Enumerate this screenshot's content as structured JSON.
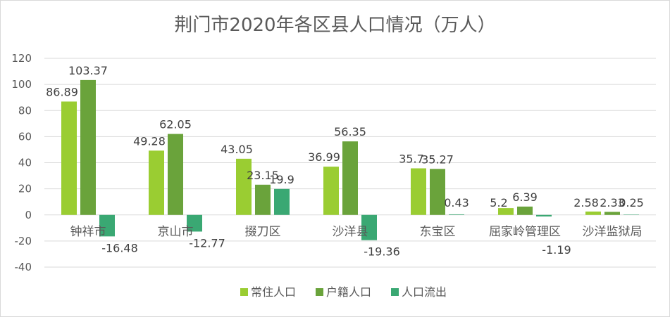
{
  "chart_data": {
    "type": "bar",
    "title": "荆门市2020年各区县人口情况（万人）",
    "categories": [
      "钟祥市",
      "京山市",
      "掇刀区",
      "沙洋县",
      "东宝区",
      "屈家岭管理区",
      "沙洋监狱局"
    ],
    "series": [
      {
        "name": "常住人口",
        "color": "#9acd32",
        "values": [
          86.89,
          49.28,
          43.05,
          36.99,
          35.7,
          5.2,
          2.58
        ]
      },
      {
        "name": "户籍人口",
        "color": "#6aa33b",
        "values": [
          103.37,
          62.05,
          23.15,
          56.35,
          35.27,
          6.39,
          2.33
        ]
      },
      {
        "name": "人口流出",
        "color": "#3aa873",
        "values": [
          -16.48,
          -12.77,
          19.9,
          -19.36,
          0.43,
          -1.19,
          0.25
        ]
      }
    ],
    "ylim": [
      -40,
      120
    ],
    "yticks": [
      -40,
      -20,
      0,
      20,
      40,
      60,
      80,
      100,
      120
    ],
    "grid": true,
    "legend": "bottom"
  }
}
